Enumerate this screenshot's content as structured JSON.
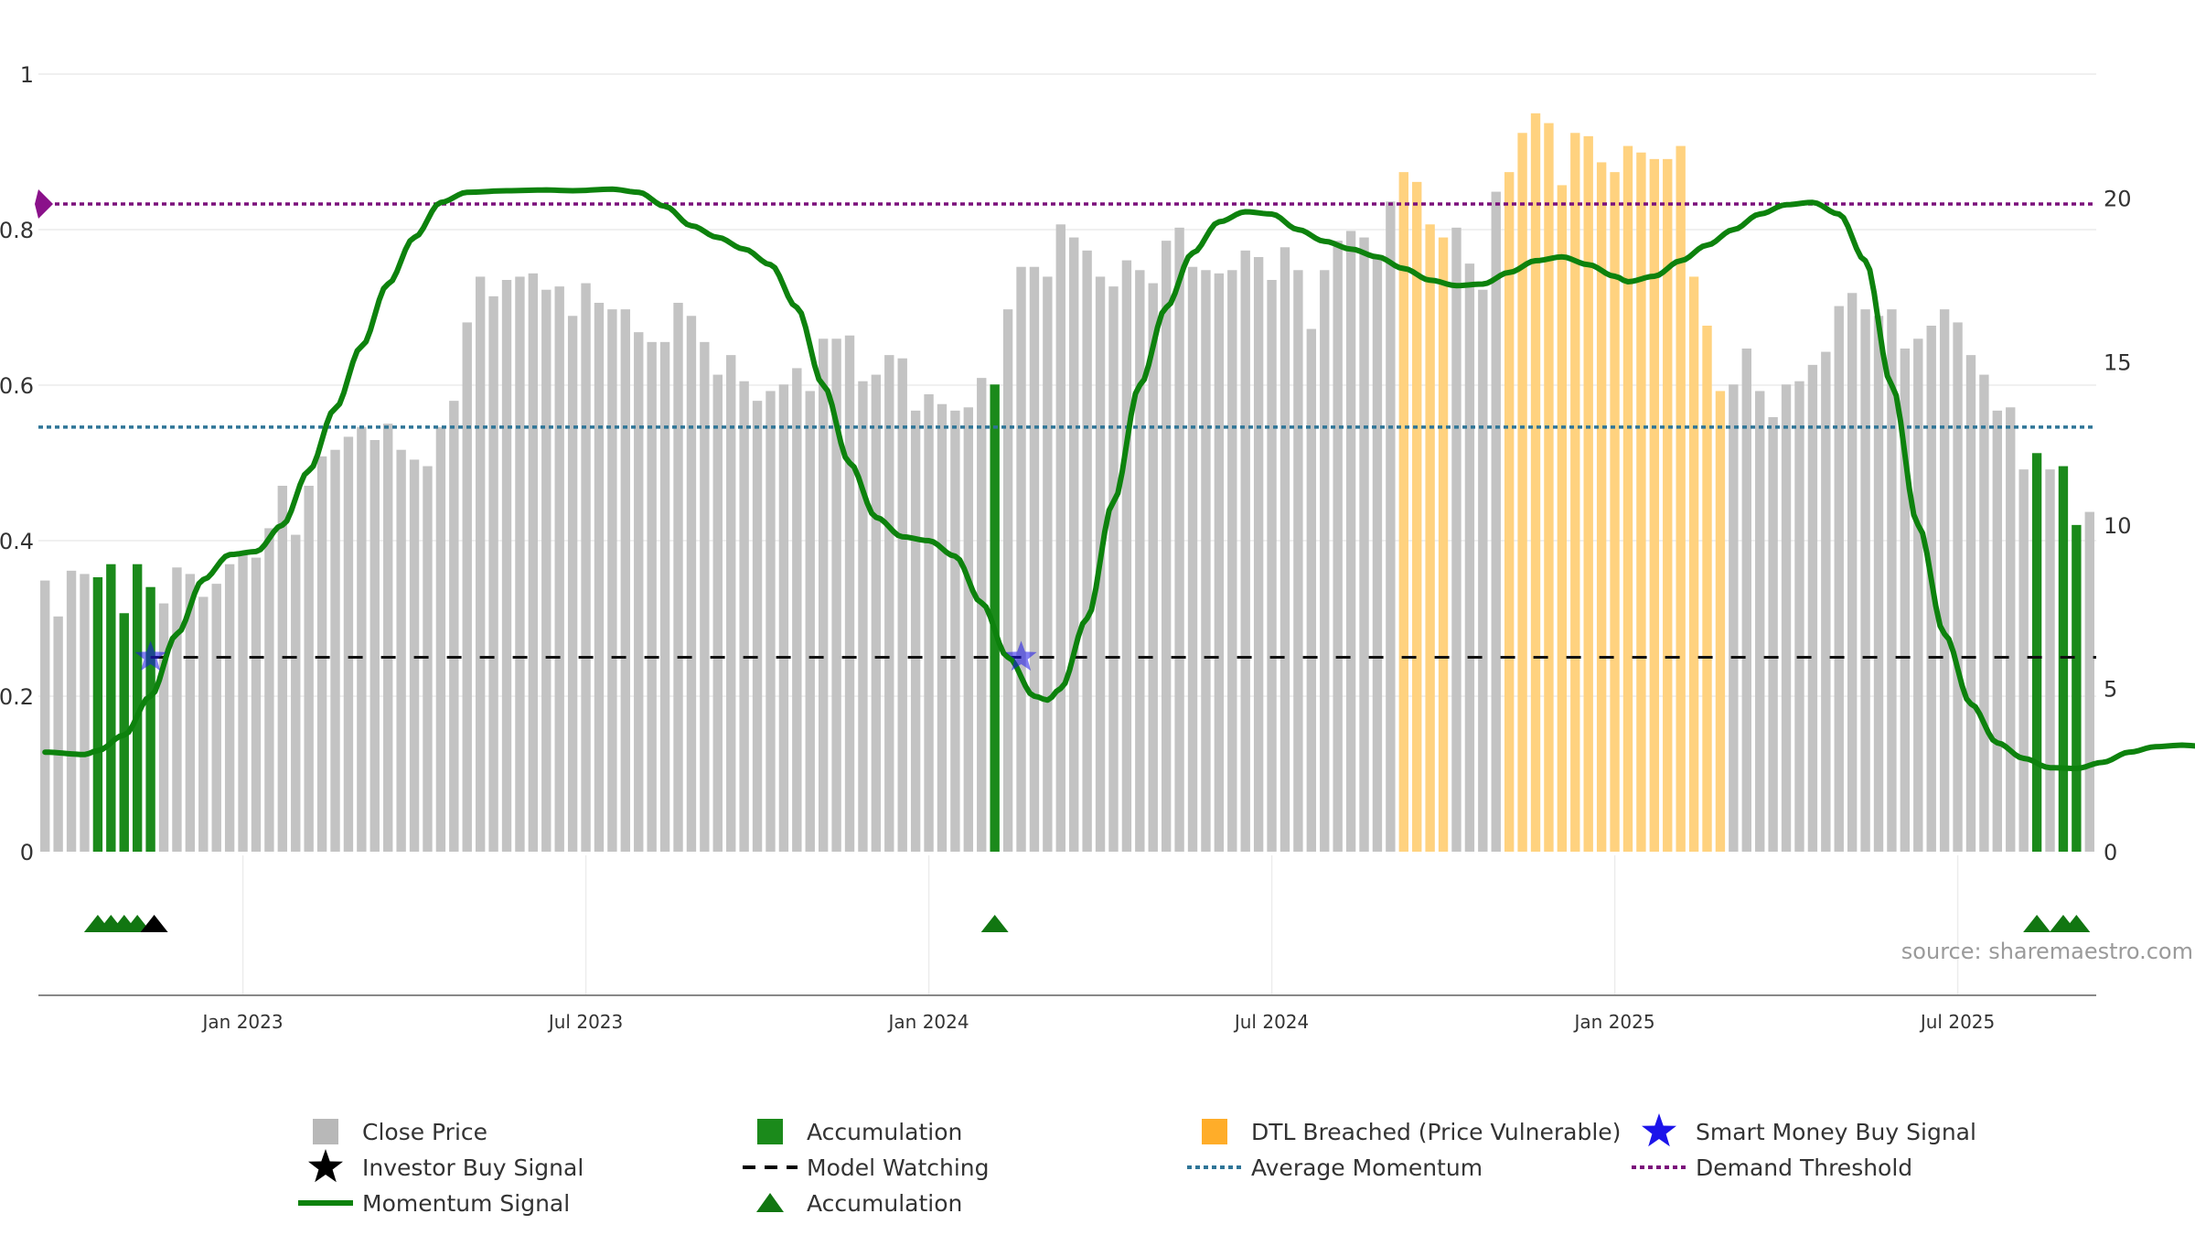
{
  "chart_data": {
    "type": "bar",
    "left_axis": {
      "ticks": [
        0,
        0.2,
        0.4,
        0.6,
        0.8,
        1
      ],
      "labels": [
        "0",
        "0.2",
        "0.4",
        "0.6",
        "0.8",
        "1"
      ],
      "ylim": [
        0,
        1
      ]
    },
    "right_axis": {
      "ticks": [
        0,
        5,
        10,
        15,
        20
      ],
      "labels": [
        "0",
        "5",
        "10",
        "15",
        "20"
      ],
      "ylim": [
        0,
        23.8
      ]
    },
    "x_axis": {
      "labels": [
        "Jan 2023",
        "Jul 2023",
        "Jan 2024",
        "Jul 2024",
        "Jan 2025",
        "Jul 2025"
      ],
      "label_indices": [
        15,
        41,
        67,
        93,
        119,
        145
      ]
    },
    "close_price": [
      8.3,
      7.2,
      8.6,
      8.5,
      8.4,
      8.8,
      7.3,
      8.8,
      8.1,
      7.6,
      8.7,
      8.5,
      7.8,
      8.2,
      8.8,
      9.1,
      9.0,
      9.9,
      11.2,
      9.7,
      11.2,
      12.1,
      12.3,
      12.7,
      13.0,
      12.6,
      13.1,
      12.3,
      12.0,
      11.8,
      13.0,
      13.8,
      16.2,
      17.6,
      17.0,
      17.5,
      17.6,
      17.7,
      17.2,
      17.3,
      16.4,
      17.4,
      16.8,
      16.6,
      16.6,
      15.9,
      15.6,
      15.6,
      16.8,
      16.4,
      15.6,
      14.6,
      15.2,
      14.4,
      13.8,
      14.1,
      14.3,
      14.8,
      14.1,
      15.7,
      15.7,
      15.8,
      14.4,
      14.6,
      15.2,
      15.1,
      13.5,
      14.0,
      13.7,
      13.5,
      13.6,
      14.5,
      14.3,
      16.6,
      17.9,
      17.9,
      17.6,
      19.2,
      18.8,
      18.4,
      17.6,
      17.3,
      18.1,
      17.8,
      17.4,
      18.7,
      19.1,
      17.9,
      17.8,
      17.7,
      17.8,
      18.4,
      18.2,
      17.5,
      18.5,
      17.8,
      16.0,
      17.8,
      18.7,
      19.0,
      18.8,
      18.2,
      19.9,
      20.8,
      20.5,
      19.2,
      18.8,
      19.1,
      18.0,
      17.2,
      20.2,
      20.8,
      22.0,
      22.6,
      22.3,
      20.4,
      22.0,
      21.9,
      21.1,
      20.8,
      21.6,
      21.4,
      21.2,
      21.2,
      21.6,
      17.6,
      16.1,
      14.1,
      14.3,
      15.4,
      14.1,
      13.3,
      14.3,
      14.4,
      14.9,
      15.3,
      16.7,
      17.1,
      16.6,
      16.4,
      16.6,
      15.4,
      15.7,
      16.1,
      16.6,
      16.2,
      15.2,
      14.6,
      13.5,
      13.6,
      11.7,
      12.2,
      11.7,
      11.8,
      10.0,
      10.4
    ],
    "accumulation_indices": [
      4,
      5,
      6,
      7,
      8,
      72,
      151,
      153,
      154
    ],
    "dtl_breached_ranges": [
      [
        103,
        106
      ],
      [
        111,
        127
      ]
    ],
    "momentum_keypoints": [
      [
        0,
        0.128
      ],
      [
        3,
        0.125
      ],
      [
        4,
        0.13
      ],
      [
        6,
        0.15
      ],
      [
        8,
        0.2
      ],
      [
        10,
        0.28
      ],
      [
        12,
        0.35
      ],
      [
        14,
        0.382
      ],
      [
        16,
        0.386
      ],
      [
        18,
        0.42
      ],
      [
        20,
        0.49
      ],
      [
        22,
        0.57
      ],
      [
        24,
        0.65
      ],
      [
        26,
        0.73
      ],
      [
        28,
        0.79
      ],
      [
        30,
        0.835
      ],
      [
        32,
        0.848
      ],
      [
        35,
        0.85
      ],
      [
        38,
        0.851
      ],
      [
        40,
        0.85
      ],
      [
        43,
        0.852
      ],
      [
        45,
        0.848
      ],
      [
        47,
        0.83
      ],
      [
        49,
        0.805
      ],
      [
        51,
        0.79
      ],
      [
        53,
        0.775
      ],
      [
        55,
        0.755
      ],
      [
        57,
        0.7
      ],
      [
        59,
        0.6
      ],
      [
        61,
        0.5
      ],
      [
        63,
        0.43
      ],
      [
        65,
        0.405
      ],
      [
        67,
        0.4
      ],
      [
        69,
        0.38
      ],
      [
        71,
        0.32
      ],
      [
        73,
        0.25
      ],
      [
        75,
        0.2
      ],
      [
        76,
        0.195
      ],
      [
        77,
        0.21
      ],
      [
        79,
        0.3
      ],
      [
        81,
        0.45
      ],
      [
        83,
        0.6
      ],
      [
        85,
        0.7
      ],
      [
        87,
        0.77
      ],
      [
        89,
        0.81
      ],
      [
        91,
        0.823
      ],
      [
        93,
        0.82
      ],
      [
        95,
        0.8
      ],
      [
        97,
        0.785
      ],
      [
        99,
        0.775
      ],
      [
        101,
        0.765
      ],
      [
        103,
        0.75
      ],
      [
        105,
        0.735
      ],
      [
        107,
        0.728
      ],
      [
        109,
        0.73
      ],
      [
        111,
        0.745
      ],
      [
        113,
        0.76
      ],
      [
        115,
        0.765
      ],
      [
        117,
        0.755
      ],
      [
        119,
        0.74
      ],
      [
        120,
        0.733
      ],
      [
        122,
        0.74
      ],
      [
        124,
        0.76
      ],
      [
        126,
        0.78
      ],
      [
        128,
        0.8
      ],
      [
        130,
        0.82
      ],
      [
        132,
        0.832
      ],
      [
        134,
        0.835
      ],
      [
        136,
        0.82
      ],
      [
        138,
        0.76
      ],
      [
        140,
        0.6
      ],
      [
        142,
        0.42
      ],
      [
        144,
        0.28
      ],
      [
        146,
        0.19
      ],
      [
        148,
        0.14
      ],
      [
        150,
        0.12
      ],
      [
        152,
        0.108
      ],
      [
        154,
        0.107
      ],
      [
        156,
        0.115
      ],
      [
        158,
        0.128
      ],
      [
        160,
        0.135
      ],
      [
        162,
        0.137
      ],
      [
        164,
        0.135
      ],
      [
        166,
        0.132
      ],
      [
        167,
        0.132
      ],
      [
        168,
        0.195
      ],
      [
        169,
        0.17
      ],
      [
        171,
        0.175
      ],
      [
        172,
        0.18
      ],
      [
        174,
        0.17
      ],
      [
        176,
        0.155
      ]
    ],
    "average_momentum": 0.546,
    "model_watching": 0.25,
    "demand_threshold": 0.833,
    "smart_money_signals": [
      [
        8,
        0.25
      ],
      [
        74,
        0.25
      ]
    ],
    "investor_buy_signal_indices": [
      8
    ],
    "accumulation_triangle_indices": [
      4,
      5,
      6,
      7,
      72,
      151,
      153,
      154
    ],
    "colors": {
      "close_price": "#c3c3c3",
      "accumulation": "#1b8a1b",
      "dtl": "#ffd27f",
      "momentum": "#0d820d",
      "average": "#2f7597",
      "demand": "#7b0f7b",
      "smart_money": "#1c14ea",
      "triangle": "#117611"
    },
    "legend": [
      {
        "label": "Close Price",
        "symbol": "square",
        "color": "#b8b8b8"
      },
      {
        "label": "Accumulation",
        "symbol": "square",
        "color": "#1b8a1b"
      },
      {
        "label": "DTL Breached (Price Vulnerable)",
        "symbol": "square",
        "color": "#ffad29"
      },
      {
        "label": "Smart Money Buy Signal",
        "symbol": "star",
        "color": "#1c14ea"
      },
      {
        "label": "Investor Buy Signal",
        "symbol": "star",
        "color": "#000000"
      },
      {
        "label": "Model Watching",
        "symbol": "dash",
        "color": "#000000"
      },
      {
        "label": "Average Momentum",
        "symbol": "dot",
        "color": "#2f7597"
      },
      {
        "label": "Demand Threshold",
        "symbol": "dot",
        "color": "#7b0f7b"
      },
      {
        "label": "Momentum Signal",
        "symbol": "line",
        "color": "#0d820d"
      },
      {
        "label": "Accumulation",
        "symbol": "triangle",
        "color": "#117611"
      }
    ],
    "legend_placement": "bottom"
  },
  "source": "source: sharemaestro.com"
}
